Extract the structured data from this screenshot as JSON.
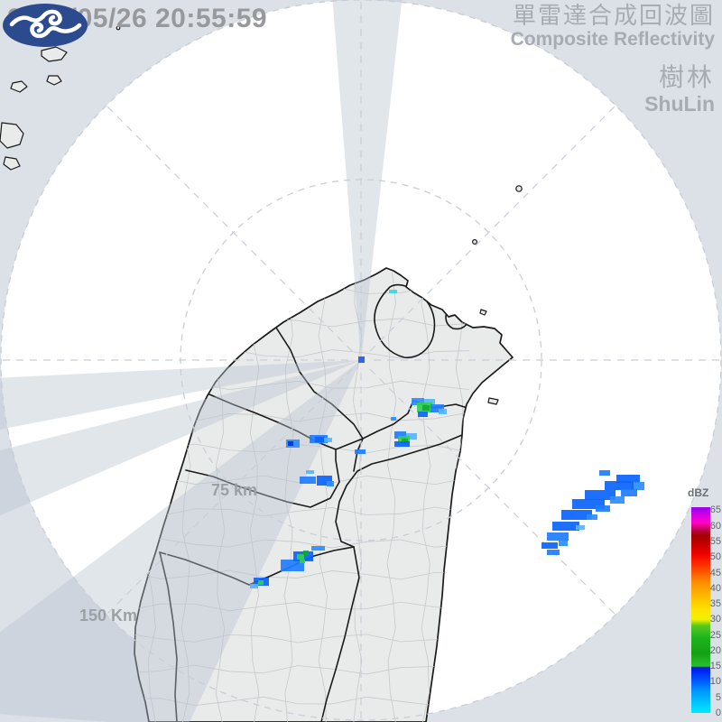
{
  "header": {
    "timestamp": "2025/05/26 20:55:59",
    "title_zh": "單雷達合成回波圖",
    "title_en": "Composite Reflectivity",
    "station_zh": "樹林",
    "station_en": "ShuLin"
  },
  "map": {
    "range_labels": {
      "r75": "75 km",
      "r150": "150 Km"
    }
  },
  "colorbar": {
    "title": "dBZ",
    "min": 0,
    "max": 66,
    "ticks": [
      65,
      60,
      55,
      50,
      45,
      40,
      35,
      30,
      25,
      20,
      15,
      10,
      5,
      0
    ],
    "stops": [
      [
        0,
        "#00eaff"
      ],
      [
        3,
        "#00c8ff"
      ],
      [
        7,
        "#0096ff"
      ],
      [
        11,
        "#004cff"
      ],
      [
        14.6,
        "#0014e6"
      ],
      [
        15,
        "#27c427"
      ],
      [
        19,
        "#16a016"
      ],
      [
        24,
        "#1cb41c"
      ],
      [
        28,
        "#5ac81e"
      ],
      [
        30,
        "#f0f000"
      ],
      [
        33,
        "#ffe400"
      ],
      [
        36,
        "#ffc800"
      ],
      [
        39,
        "#ffaa00"
      ],
      [
        42,
        "#ff8c00"
      ],
      [
        45,
        "#ff5a00"
      ],
      [
        48,
        "#ff2800"
      ],
      [
        51,
        "#f00000"
      ],
      [
        54,
        "#c80000"
      ],
      [
        57,
        "#a00000"
      ],
      [
        59,
        "#c8005a"
      ],
      [
        61,
        "#ff00c8"
      ],
      [
        63,
        "#e100e1"
      ],
      [
        65,
        "#aa00f0"
      ],
      [
        66,
        "#9600e1"
      ]
    ]
  },
  "colors": {
    "base_bg": "#dce1e8",
    "sea": "#ffffff",
    "land": "#e9eaea",
    "county_border": "#1a1a1a",
    "township_border": "#c6c9cc",
    "ring": "#c9ced6",
    "wedge": "rgba(184,195,208,0.42)",
    "header_text": "#a7acb4",
    "timestamp_text": "#98999c",
    "range_label": "#9aa0a3",
    "logo_navy": "#2c4a8e",
    "scale_text": "#5f6368"
  },
  "chart_data": {
    "type": "heatmap",
    "unit": "dBZ",
    "title": "Single radar composite reflectivity echoes (ShuLin)",
    "legend_position": "right",
    "cells": [
      [
        664,
        521,
        12,
        6,
        "#1e7dff"
      ],
      [
        683,
        526,
        26,
        9,
        "#0a64ff"
      ],
      [
        700,
        534,
        14,
        9,
        "#2f8cff"
      ],
      [
        670,
        533,
        32,
        10,
        "#0a64ff"
      ],
      [
        688,
        542,
        18,
        8,
        "#1e7dff"
      ],
      [
        648,
        543,
        34,
        11,
        "#0a64ff"
      ],
      [
        676,
        550,
        16,
        8,
        "#2f8cff"
      ],
      [
        634,
        553,
        36,
        11,
        "#0a64ff"
      ],
      [
        660,
        560,
        16,
        7,
        "#1e7dff"
      ],
      [
        622,
        565,
        34,
        11,
        "#0a64ff"
      ],
      [
        650,
        570,
        12,
        6,
        "#2f8cff"
      ],
      [
        612,
        578,
        30,
        10,
        "#0a64ff"
      ],
      [
        638,
        582,
        10,
        5,
        "#55b4ff"
      ],
      [
        606,
        590,
        24,
        9,
        "#1e7dff"
      ],
      [
        600,
        601,
        18,
        7,
        "#0a64ff"
      ],
      [
        619,
        599,
        10,
        6,
        "#2f8cff"
      ],
      [
        606,
        609,
        14,
        6,
        "#1e7dff"
      ],
      [
        456,
        441,
        14,
        8,
        "#2f8cff"
      ],
      [
        470,
        442,
        12,
        6,
        "#55b4ff"
      ],
      [
        462,
        446,
        17,
        11,
        "#2fd04f"
      ],
      [
        468,
        449,
        8,
        6,
        "#12a832"
      ],
      [
        477,
        448,
        15,
        9,
        "#1e7dff"
      ],
      [
        486,
        453,
        9,
        6,
        "#55b4ff"
      ],
      [
        463,
        456,
        11,
        6,
        "#0a64ff"
      ],
      [
        433,
        462,
        6,
        4,
        "#2f8cff"
      ],
      [
        437,
        478,
        13,
        8,
        "#1e7dff"
      ],
      [
        450,
        480,
        12,
        7,
        "#55b4ff"
      ],
      [
        441,
        483,
        13,
        9,
        "#2fd04f"
      ],
      [
        445,
        486,
        7,
        5,
        "#12a832"
      ],
      [
        437,
        489,
        17,
        6,
        "#0a64ff"
      ],
      [
        343,
        482,
        20,
        9,
        "#1e7dff"
      ],
      [
        349,
        484,
        11,
        6,
        "#0a64ff"
      ],
      [
        359,
        485,
        9,
        5,
        "#55b4ff"
      ],
      [
        317,
        487,
        15,
        9,
        "#2f8cff"
      ],
      [
        319,
        489,
        6,
        5,
        "#0033dd"
      ],
      [
        393,
        498,
        12,
        5,
        "#1e7dff"
      ],
      [
        339,
        521,
        9,
        4,
        "#55b4ff"
      ],
      [
        332,
        528,
        18,
        8,
        "#1e7dff"
      ],
      [
        351,
        527,
        17,
        11,
        "#0a64ff"
      ],
      [
        362,
        533,
        8,
        6,
        "#2f8cff"
      ],
      [
        311,
        620,
        26,
        13,
        "#1e7dff"
      ],
      [
        325,
        611,
        22,
        11,
        "#0a64ff"
      ],
      [
        329,
        614,
        8,
        6,
        "#2fd04f"
      ],
      [
        336,
        610,
        6,
        5,
        "#12a832"
      ],
      [
        332,
        620,
        6,
        4,
        "#2fd04f"
      ],
      [
        345,
        605,
        15,
        5,
        "#2f8cff"
      ],
      [
        281,
        640,
        17,
        9,
        "#0a64ff"
      ],
      [
        286,
        643,
        6,
        5,
        "#2fd04f"
      ],
      [
        277,
        647,
        9,
        5,
        "#55b4ff"
      ],
      [
        397,
        395,
        7,
        7,
        "#2456f0"
      ],
      [
        431,
        321,
        9,
        4,
        "#35d8e8"
      ]
    ]
  }
}
